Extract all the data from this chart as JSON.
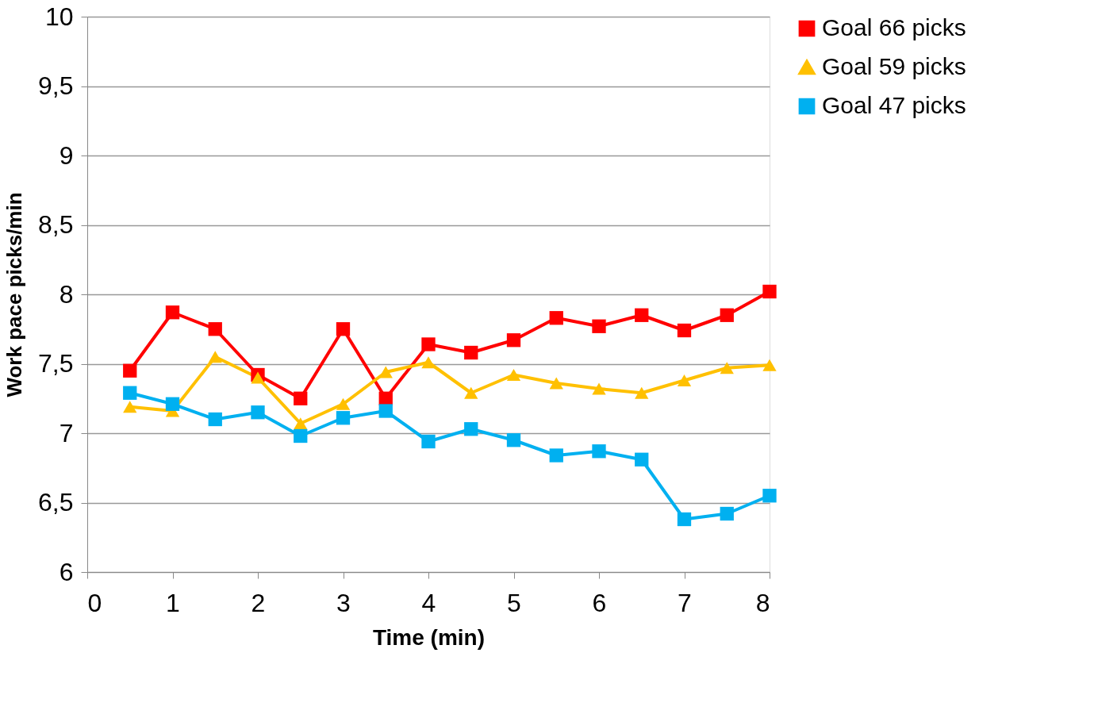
{
  "chart_data": {
    "type": "line",
    "xlabel": "Time (min)",
    "ylabel": "Work pace picks/min",
    "x": [
      0.5,
      1,
      1.5,
      2,
      2.5,
      3,
      3.5,
      4,
      4.5,
      5,
      5.5,
      6,
      6.5,
      7,
      7.5,
      8
    ],
    "xlim": [
      0,
      8
    ],
    "xticks": [
      0,
      1,
      2,
      3,
      4,
      5,
      6,
      7,
      8
    ],
    "ylim": [
      6,
      10
    ],
    "yticks": [
      6,
      {
        "value": 6.5,
        "label": "6,5"
      },
      7,
      {
        "value": 7.5,
        "label": "7,5"
      },
      8,
      {
        "value": 8.5,
        "label": "8,5"
      },
      9,
      {
        "value": 9.5,
        "label": "9,5"
      },
      10
    ],
    "grid": "y",
    "legend": "right",
    "line_style": "solid",
    "series": [
      {
        "name": "Goal 66 picks",
        "color": "#ff0000",
        "marker": "square",
        "values": [
          7.45,
          7.87,
          7.75,
          7.42,
          7.25,
          7.75,
          7.25,
          7.64,
          7.58,
          7.67,
          7.83,
          7.77,
          7.85,
          7.74,
          7.85,
          8.02
        ]
      },
      {
        "name": "Goal 59 picks",
        "color": "#ffc000",
        "marker": "triangle",
        "values": [
          7.19,
          7.16,
          7.55,
          7.4,
          7.07,
          7.21,
          7.44,
          7.51,
          7.29,
          7.42,
          7.36,
          7.32,
          7.29,
          7.38,
          7.47,
          7.49
        ]
      },
      {
        "name": "Goal 47 picks",
        "color": "#00b0f0",
        "marker": "square",
        "values": [
          7.29,
          7.21,
          7.1,
          7.15,
          6.98,
          7.11,
          7.16,
          6.94,
          7.03,
          6.95,
          6.84,
          6.87,
          6.81,
          6.38,
          6.42,
          6.55
        ]
      }
    ]
  }
}
